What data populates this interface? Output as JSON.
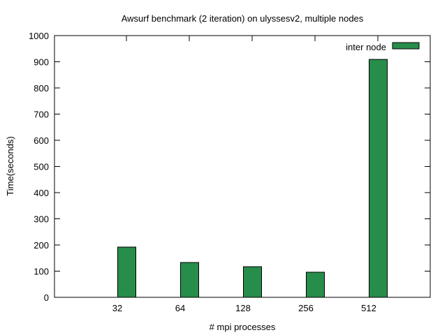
{
  "chart_data": {
    "type": "bar",
    "title": "Awsurf benchmark (2 iteration) on ulyssesv2, multiple nodes",
    "xlabel": "# mpi processes",
    "ylabel": "Time(seconds)",
    "categories": [
      "32",
      "64",
      "128",
      "256",
      "512"
    ],
    "series": [
      {
        "name": "inter node",
        "color": "#268d4a",
        "values": [
          192,
          133,
          117,
          96,
          909
        ]
      }
    ],
    "ylim": [
      0,
      1000
    ],
    "yticks": [
      0,
      100,
      200,
      300,
      400,
      500,
      600,
      700,
      800,
      900,
      1000
    ],
    "grid": false,
    "legend": "top-right"
  }
}
